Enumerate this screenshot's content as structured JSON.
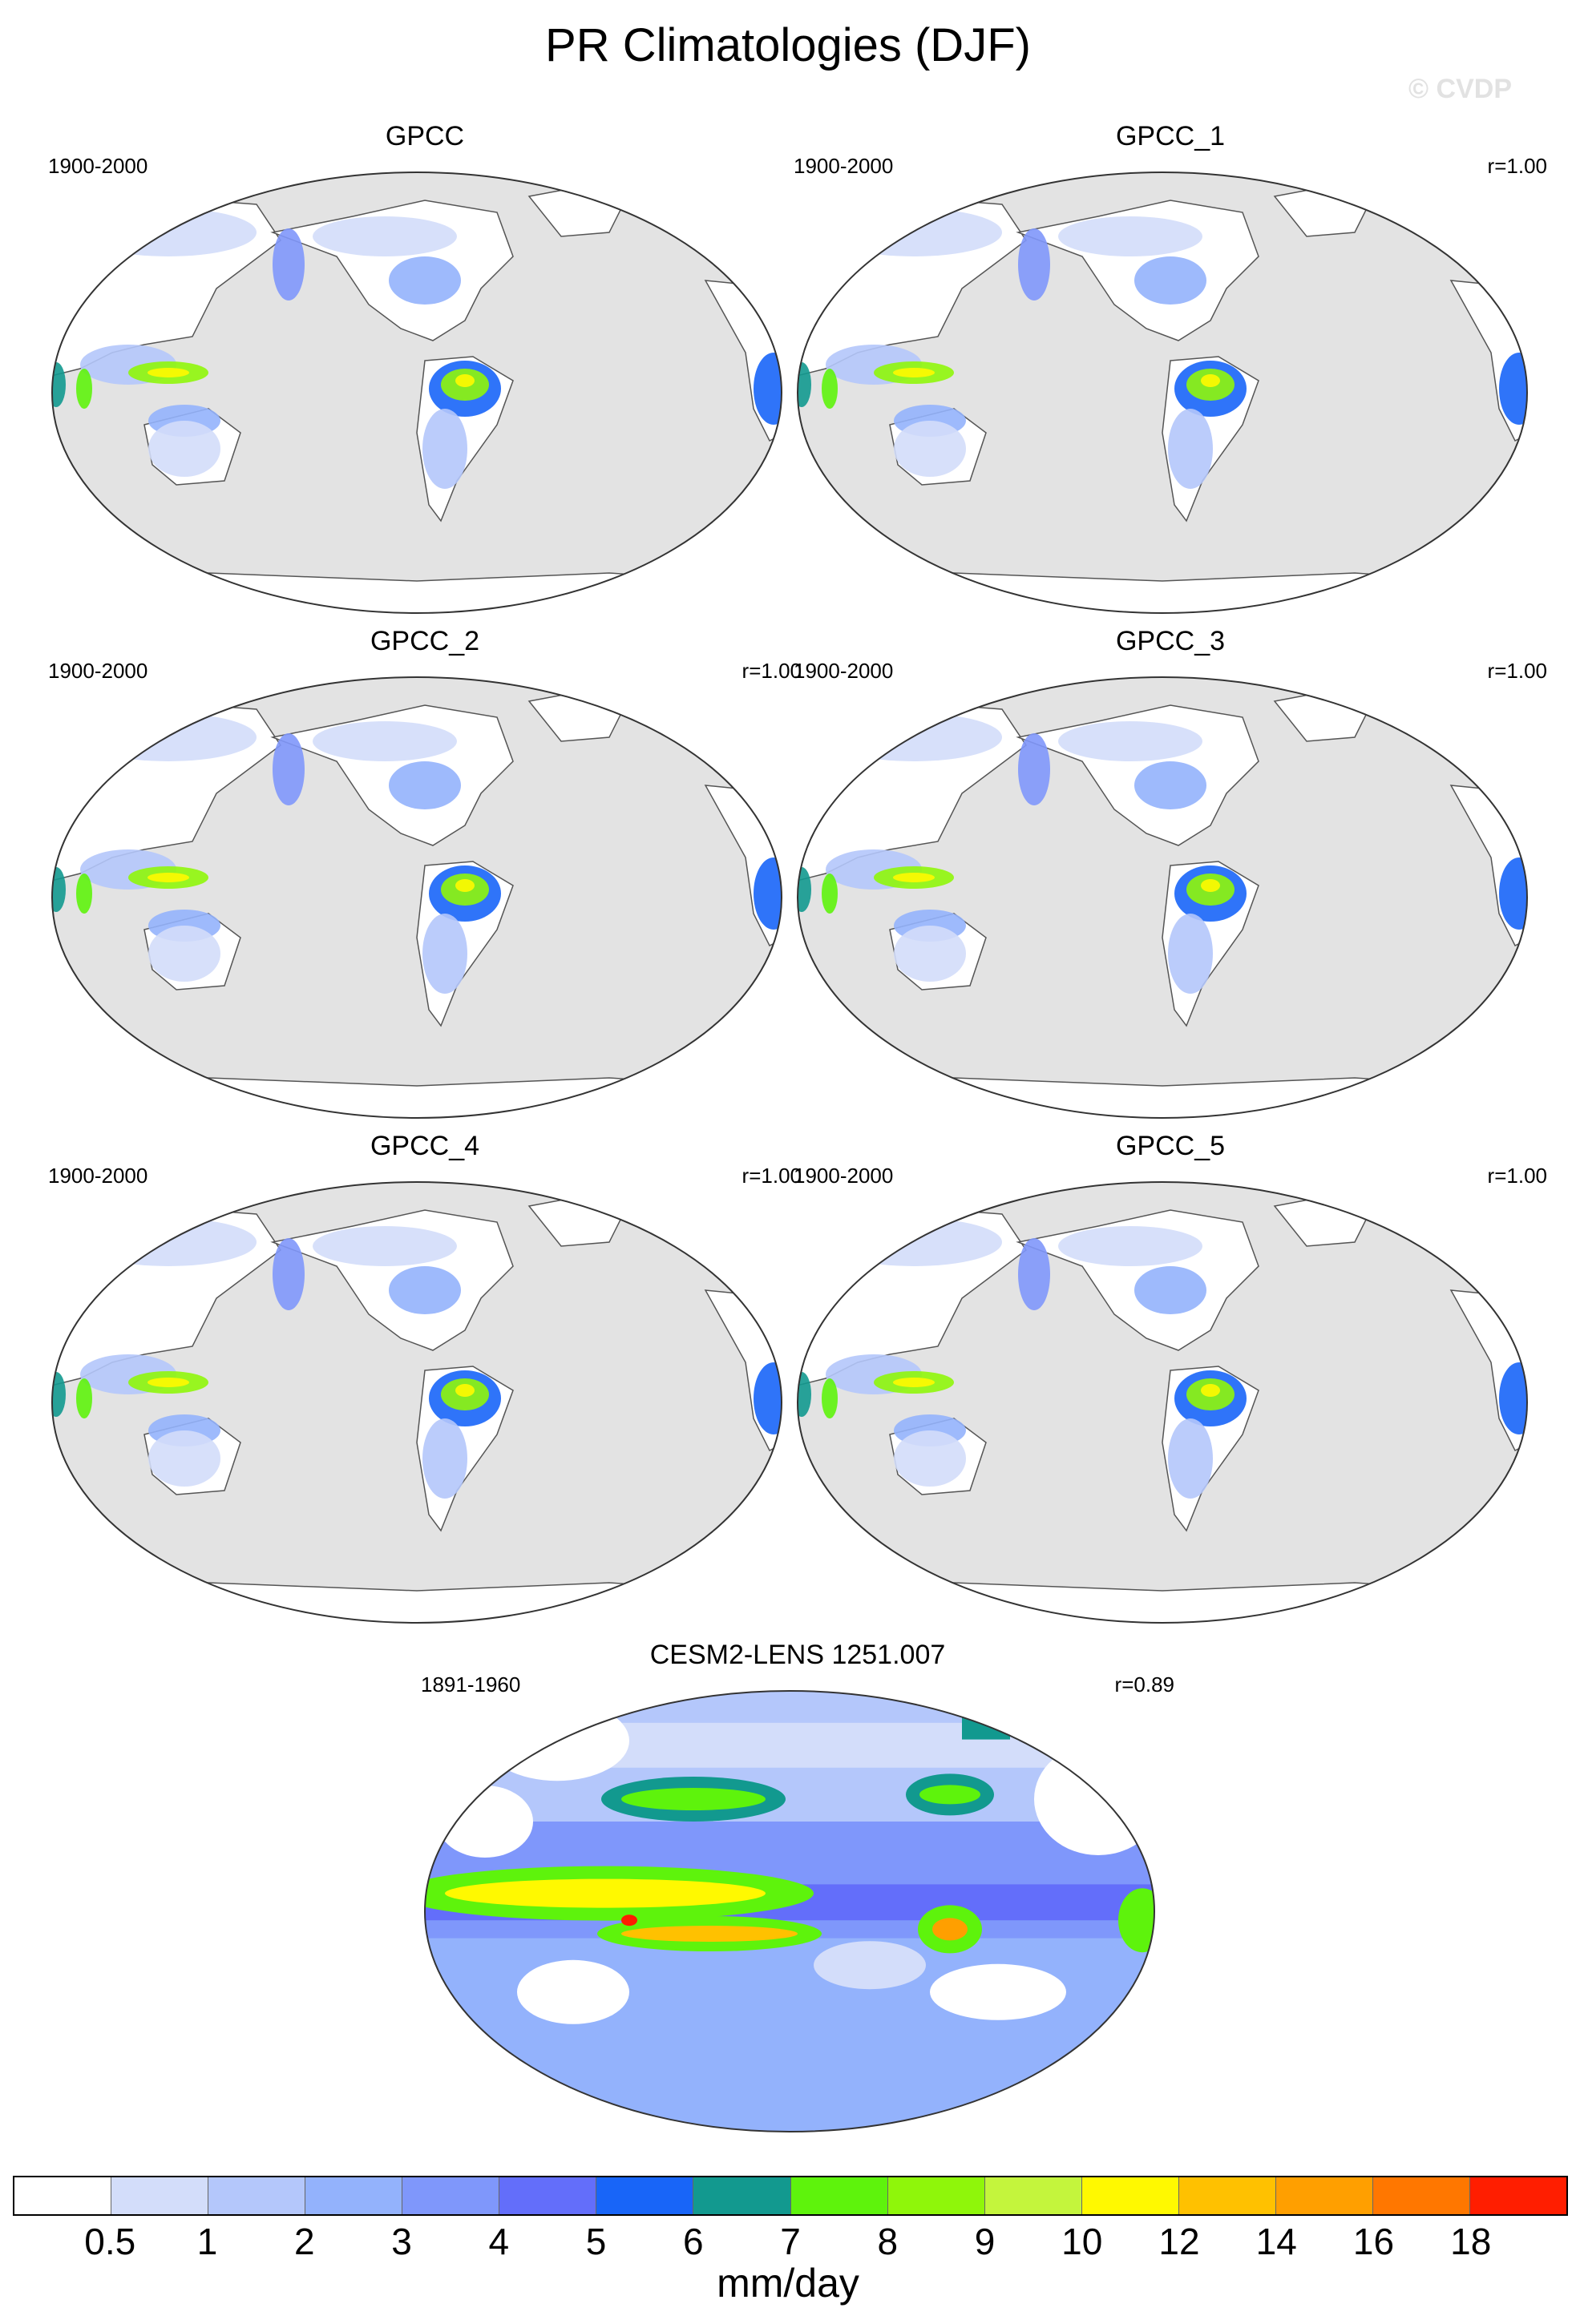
{
  "title": "PR Climatologies (DJF)",
  "copyright": "© CVDP",
  "colors": {
    "ocean": "#e3e3e3",
    "land_dry": "#ffffff",
    "outline": "#555555"
  },
  "panels": [
    {
      "id": "gpcc",
      "title": "GPCC",
      "period": "1900-2000",
      "corr": "",
      "kind": "obs"
    },
    {
      "id": "gpcc_1",
      "title": "GPCC_1",
      "period": "1900-2000",
      "corr": "r=1.00",
      "kind": "obs"
    },
    {
      "id": "gpcc_2",
      "title": "GPCC_2",
      "period": "1900-2000",
      "corr": "r=1.00",
      "kind": "obs"
    },
    {
      "id": "gpcc_3",
      "title": "GPCC_3",
      "period": "1900-2000",
      "corr": "r=1.00",
      "kind": "obs"
    },
    {
      "id": "gpcc_4",
      "title": "GPCC_4",
      "period": "1900-2000",
      "corr": "r=1.00",
      "kind": "obs"
    },
    {
      "id": "gpcc_5",
      "title": "GPCC_5",
      "period": "1900-2000",
      "corr": "r=1.00",
      "kind": "obs"
    },
    {
      "id": "cesm2",
      "title": "CESM2-LENS 1251.007",
      "period": "1891-1960",
      "corr": "r=0.89",
      "kind": "model"
    }
  ],
  "colorbar": {
    "units": "mm/day",
    "labels": [
      "0.5",
      "1",
      "2",
      "3",
      "4",
      "5",
      "6",
      "7",
      "8",
      "9",
      "10",
      "12",
      "14",
      "16",
      "18"
    ],
    "colors": [
      "#ffffff",
      "#d3ddfa",
      "#b4c7fb",
      "#93b2fc",
      "#7f97fb",
      "#636efa",
      "#1865f8",
      "#12998f",
      "#5ef30c",
      "#8ff60a",
      "#c4f53c",
      "#fff900",
      "#ffc100",
      "#ff9f00",
      "#ff7700",
      "#ff1e00"
    ]
  }
}
